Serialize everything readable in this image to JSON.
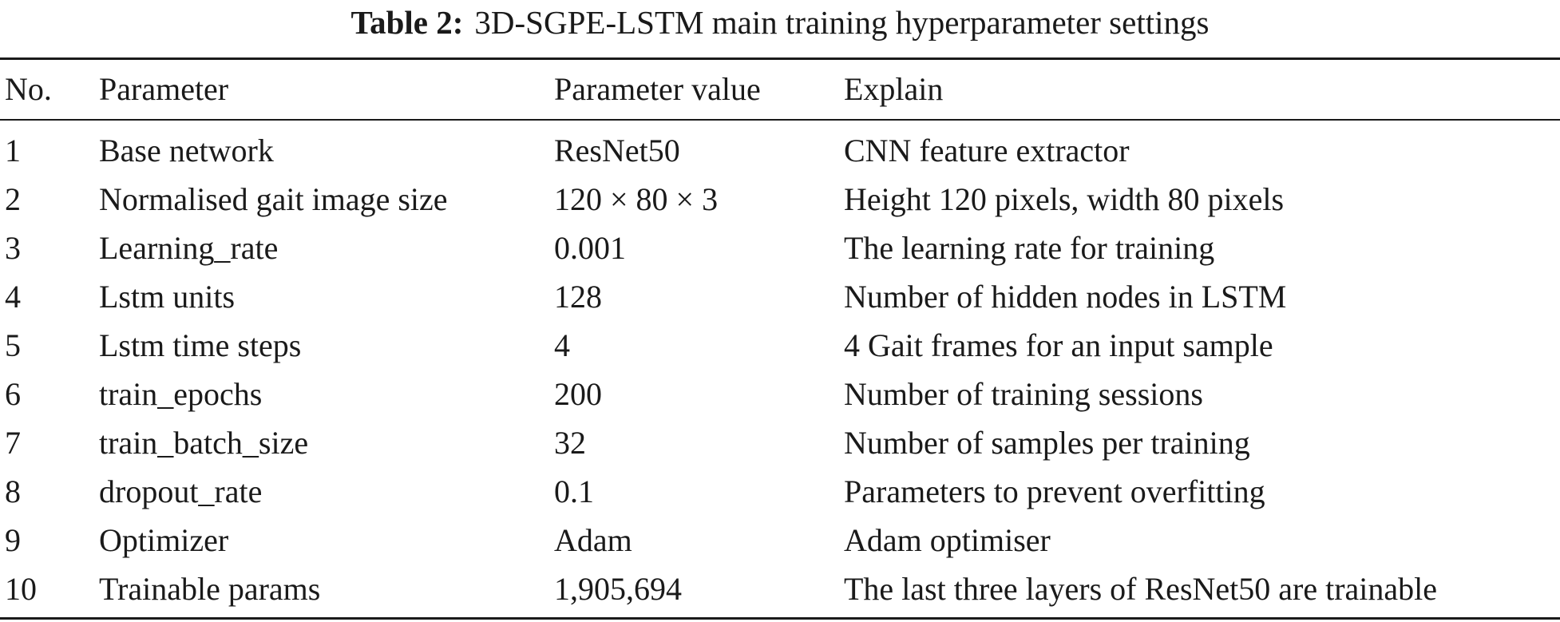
{
  "caption": {
    "label": "Table 2:",
    "text": "3D-SGPE-LSTM main training hyperparameter settings"
  },
  "table": {
    "headers": [
      "No.",
      "Parameter",
      "Parameter value",
      "Explain"
    ],
    "rows": [
      [
        "1",
        "Base network",
        "ResNet50",
        "CNN feature extractor"
      ],
      [
        "2",
        "Normalised gait image size",
        "120 × 80 × 3",
        "Height 120 pixels, width 80 pixels"
      ],
      [
        "3",
        "Learning_rate",
        "0.001",
        "The learning rate for training"
      ],
      [
        "4",
        "Lstm units",
        "128",
        "Number of hidden nodes in LSTM"
      ],
      [
        "5",
        "Lstm time steps",
        "4",
        "4 Gait frames for an input sample"
      ],
      [
        "6",
        "train_epochs",
        "200",
        "Number of training sessions"
      ],
      [
        "7",
        "train_batch_size",
        "32",
        "Number of samples per training"
      ],
      [
        "8",
        "dropout_rate",
        "0.1",
        "Parameters to prevent overfitting"
      ],
      [
        "9",
        "Optimizer",
        "Adam",
        "Adam optimiser"
      ],
      [
        "10",
        "Trainable params",
        "1,905,694",
        "The last three layers of ResNet50 are trainable"
      ]
    ]
  }
}
